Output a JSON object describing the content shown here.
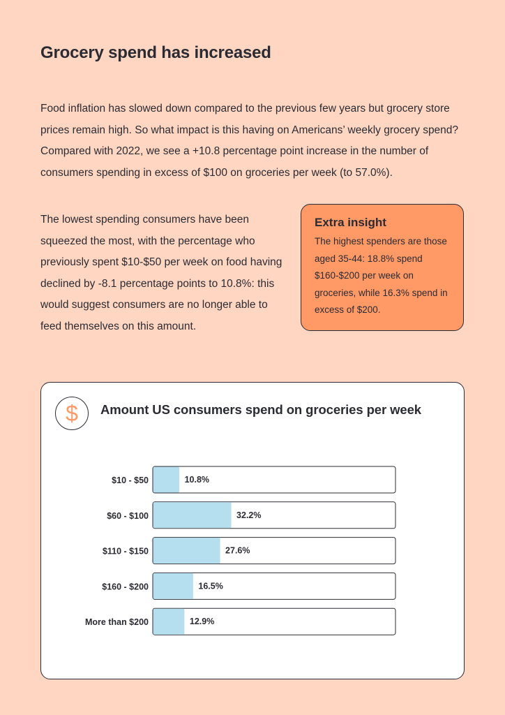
{
  "heading": "Grocery spend has increased",
  "paragraphs": [
    "Food inflation has slowed down compared to the previous few years but grocery store prices remain high. So what impact is this having on Americans’ weekly grocery spend? Compared with 2022, we see a +10.8 percentage point increase in the number of consumers spending in excess of $100 on groceries per week (to 57.0%).",
    "The lowest spending consumers have been squeezed the most, with the percentage who previously spent $10-$50 per week on food having declined by -8.1 percentage points to 10.8%: this would suggest consumers are no longer able to feed themselves on this amount."
  ],
  "insight": {
    "title": "Extra insight",
    "text": "The highest spenders are those aged 35-44: 18.8% spend $160-$200 per week on groceries, while 16.3% spend in excess of $200."
  },
  "card": {
    "icon": "dollar-icon",
    "icon_glyph": "$"
  },
  "colors": {
    "background": "#ffd6c1",
    "accent": "#ff9966",
    "bar": "#b5dfee",
    "text": "#2b2b33"
  },
  "chart_data": {
    "type": "bar",
    "orientation": "horizontal",
    "title": "Amount US consumers spend on groceries per week",
    "categories": [
      "$10 - $50",
      "$60 - $100",
      "$110 - $150",
      "$160 - $200",
      "More than $200"
    ],
    "values": [
      10.8,
      32.2,
      27.6,
      16.5,
      12.9
    ],
    "value_labels": [
      "10.8%",
      "32.2%",
      "27.6%",
      "16.5%",
      "12.9%"
    ],
    "xlim": [
      0,
      100
    ],
    "unit": "%",
    "xlabel": "",
    "ylabel": ""
  }
}
